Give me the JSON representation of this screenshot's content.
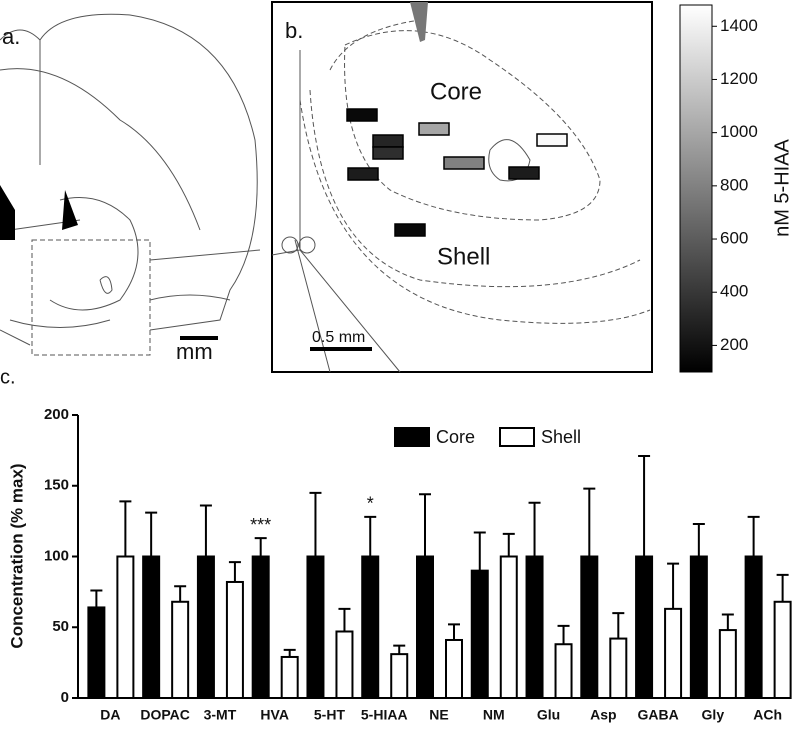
{
  "panel_a": {
    "label": "a.",
    "scale_label": "mm"
  },
  "panel_b": {
    "label": "b.",
    "region_labels": [
      "Core",
      "Shell"
    ],
    "scale_label": "0.5 mm",
    "colorbar": {
      "label": "nM 5-HIAA",
      "lim": [
        100,
        1480
      ],
      "ticks": [
        200,
        400,
        600,
        800,
        1000,
        1200,
        1400
      ]
    },
    "samples": [
      150,
      300,
      350,
      250,
      1000,
      1450,
      800,
      250,
      150
    ]
  },
  "chart_data": {
    "type": "bar",
    "panel_label": "c.",
    "y_label": "Concentration (% max)",
    "categories": [
      "DA",
      "DOPAC",
      "3-MT",
      "HVA",
      "5-HT",
      "5-HIAA",
      "NE",
      "NM",
      "Glu",
      "Asp",
      "GABA",
      "Gly",
      "ACh"
    ],
    "series": [
      {
        "name": "Core",
        "color": "#000000",
        "values": [
          64,
          100,
          100,
          100,
          100,
          100,
          100,
          90,
          100,
          100,
          100,
          100,
          100
        ],
        "errors": [
          12,
          31,
          36,
          13,
          45,
          28,
          44,
          27,
          38,
          48,
          71,
          23,
          28
        ]
      },
      {
        "name": "Shell",
        "color": "#ffffff",
        "values": [
          100,
          68,
          82,
          29,
          47,
          31,
          41,
          100,
          38,
          42,
          63,
          48,
          68
        ],
        "errors": [
          39,
          11,
          14,
          5,
          16,
          6,
          11,
          16,
          13,
          18,
          32,
          11,
          19
        ]
      }
    ],
    "annotations": [
      null,
      null,
      null,
      "***",
      null,
      "*",
      null,
      null,
      null,
      null,
      null,
      null,
      null
    ],
    "ylim": [
      0,
      200
    ],
    "yticks": [
      0,
      50,
      100,
      150,
      200
    ],
    "grid": false
  }
}
